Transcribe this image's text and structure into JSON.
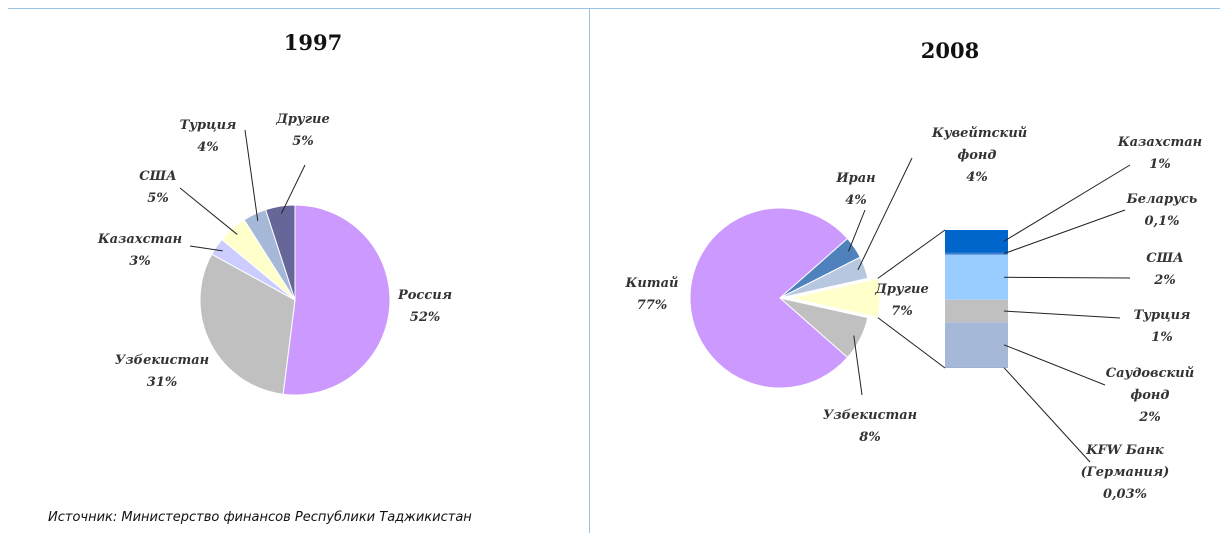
{
  "chart_data": [
    {
      "type": "pie",
      "title": "1997",
      "categories": [
        "Россия",
        "Узбекистан",
        "Казахстан",
        "США",
        "Турция",
        "Другие"
      ],
      "values": [
        52,
        31,
        3,
        5,
        4,
        5
      ],
      "value_labels": [
        "52%",
        "31%",
        "3%",
        "5%",
        "4%",
        "5%"
      ],
      "colors": [
        "#cc99ff",
        "#c0c0c0",
        "#ccccff",
        "#ffffcc",
        "#a6b8d8",
        "#666699"
      ]
    },
    {
      "type": "bar-of-pie",
      "title": "2008",
      "categories": [
        "Другие",
        "Узбекистан",
        "Китай",
        "Иран",
        "Кувейтский фонд"
      ],
      "values": [
        7,
        8,
        77,
        4,
        4
      ],
      "value_labels": [
        "7%",
        "8%",
        "77%",
        "4%",
        "4%"
      ],
      "colors": [
        "#ffffcc",
        "#c0c0c0",
        "#cc99ff",
        "#4f81bd",
        "#b8c7e0"
      ],
      "breakdown": {
        "categories": [
          "Казахстан",
          "Беларусь",
          "США",
          "Турция",
          "Саудовский фонд",
          "KFW Банк (Германия)"
        ],
        "values": [
          1,
          0.1,
          2,
          1,
          2,
          0.03
        ],
        "value_labels": [
          "1%",
          "0,1%",
          "2%",
          "1%",
          "2%",
          "0,03%"
        ],
        "colors": [
          "#0066cc",
          "#3a7fd0",
          "#99ccff",
          "#c0c0c0",
          "#a6b8d8",
          "#8fa3c8"
        ]
      }
    }
  ],
  "source": "Источник: Министерство финансов Республики Таджикистан"
}
